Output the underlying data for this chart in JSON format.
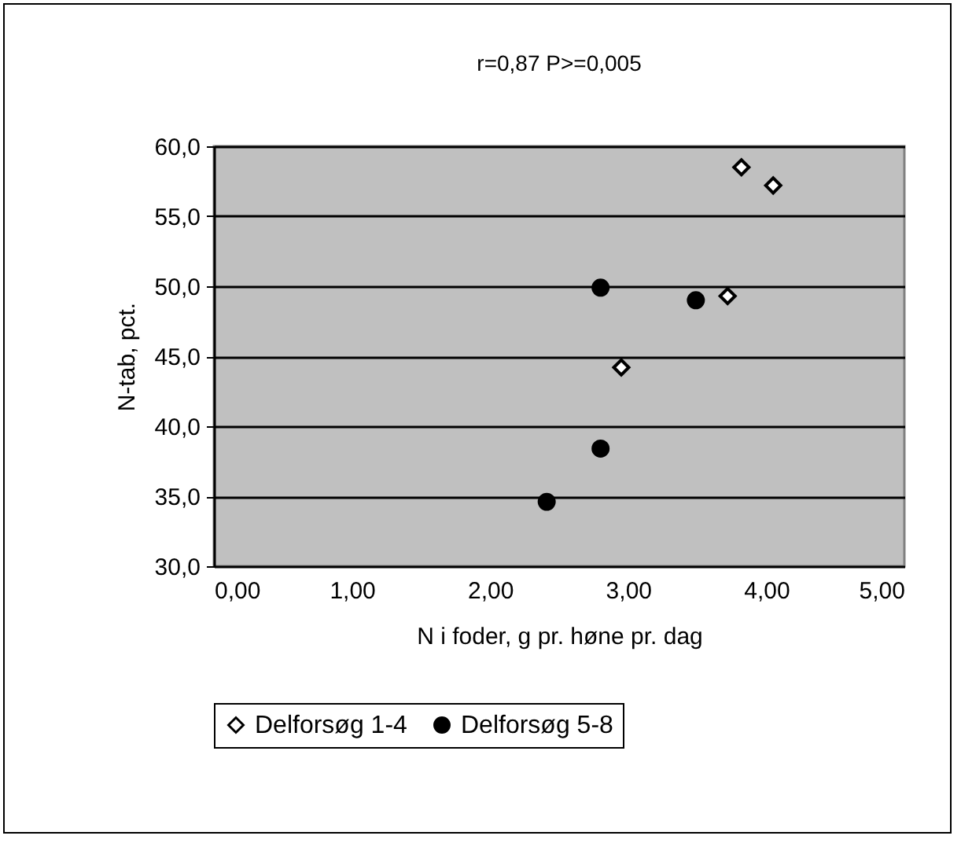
{
  "chart_data": {
    "type": "scatter",
    "title": "r=0,87   P>=0,005",
    "xlabel": "N i foder, g pr. høne pr. dag",
    "ylabel": "N-tab, pct.",
    "xlim": [
      0,
      5
    ],
    "ylim": [
      30,
      60
    ],
    "xticks": [
      {
        "value": 0,
        "label": "0,00"
      },
      {
        "value": 1,
        "label": "1,00"
      },
      {
        "value": 2,
        "label": "2,00"
      },
      {
        "value": 3,
        "label": "3,00"
      },
      {
        "value": 4,
        "label": "4,00"
      },
      {
        "value": 5,
        "label": "5,00"
      }
    ],
    "yticks": [
      {
        "value": 30,
        "label": "30,0"
      },
      {
        "value": 35,
        "label": "35,0"
      },
      {
        "value": 40,
        "label": "40,0"
      },
      {
        "value": 45,
        "label": "45,0"
      },
      {
        "value": 50,
        "label": "50,0"
      },
      {
        "value": 55,
        "label": "55,0"
      },
      {
        "value": 60,
        "label": "60,0"
      }
    ],
    "grid": "y",
    "legend": "bottom",
    "series": [
      {
        "name": "Delforsøg 1-4",
        "color": "#000000",
        "marker": "diamond",
        "x": [
          3.82,
          4.05,
          3.72,
          2.95
        ],
        "values": [
          58.5,
          57.2,
          49.3,
          44.2
        ]
      },
      {
        "name": "Delforsøg 5-8",
        "color": "#000000",
        "marker": "circle",
        "x": [
          2.8,
          3.49,
          2.8,
          2.41
        ],
        "values": [
          49.9,
          49.0,
          38.4,
          34.6
        ]
      }
    ]
  }
}
